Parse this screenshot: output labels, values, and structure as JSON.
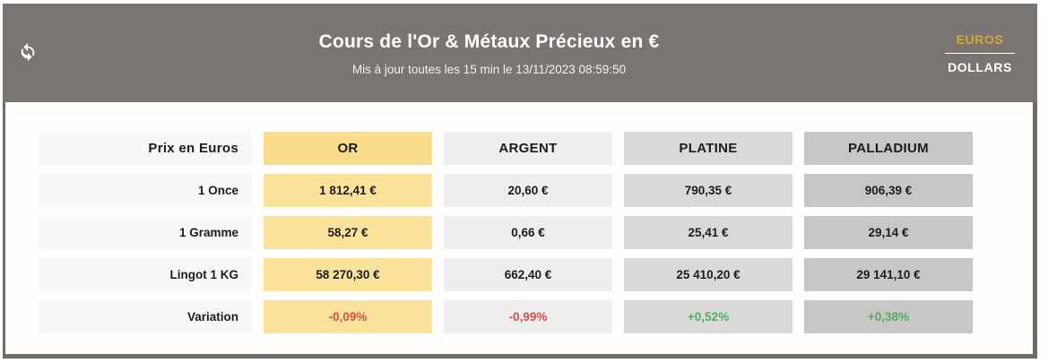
{
  "header": {
    "title": "Cours de l'Or & Métaux Précieux en €",
    "subtitle": "Mis à jour toutes les 15 min le 13/11/2023 08:59:50",
    "currency": {
      "euros": "EUROS",
      "dollars": "DOLLARS",
      "active": "EUROS"
    },
    "refresh_icon": "refresh-icon"
  },
  "colors": {
    "header_bg": "#7A7570",
    "border": "#6F6A66",
    "euros_gold": "#D2A73E",
    "up_green": "#4CAF5E",
    "down_red": "#DC4B45",
    "label_bg": "#F9F8F6"
  },
  "table": {
    "corner_label": "Prix en Euros",
    "columns": [
      {
        "key": "or",
        "label": "OR",
        "header_bg": "#F9DC8C",
        "cell_bg": "#FBE29B"
      },
      {
        "key": "argent",
        "label": "ARGENT",
        "header_bg": "#EFEEEC",
        "cell_bg": "#EFEEEC"
      },
      {
        "key": "platine",
        "label": "PLATINE",
        "header_bg": "#DBD9D7",
        "cell_bg": "#DBD9D7"
      },
      {
        "key": "palladium",
        "label": "PALLADIUM",
        "header_bg": "#C9C7C5",
        "cell_bg": "#C9C7C5"
      }
    ],
    "rows": [
      {
        "label": "1 Once",
        "values": [
          "1 812,41 €",
          "20,60 €",
          "790,35 €",
          "906,39 €"
        ]
      },
      {
        "label": "1 Gramme",
        "values": [
          "58,27 €",
          "0,66 €",
          "25,41 €",
          "29,14 €"
        ]
      },
      {
        "label": "Lingot 1 KG",
        "values": [
          "58 270,30 €",
          "662,40 €",
          "25 410,20 €",
          "29 141,10 €"
        ]
      },
      {
        "label": "Variation",
        "values": [
          "-0,09%",
          "-0,99%",
          "+0,52%",
          "+0,38%"
        ],
        "variation": true,
        "directions": [
          "down",
          "down",
          "up",
          "up"
        ]
      }
    ]
  }
}
